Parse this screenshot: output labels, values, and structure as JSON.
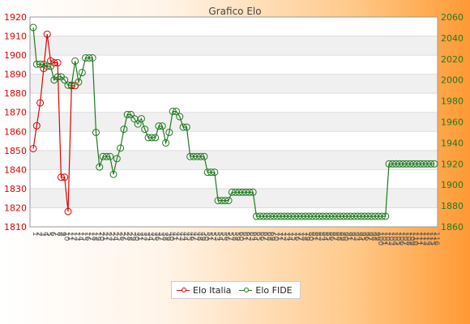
{
  "chart_data": {
    "type": "line",
    "title": "Grafico Elo",
    "legend_position": "bottom-center",
    "grid": true,
    "y_left": {
      "min": 1810,
      "max": 1920,
      "step": 10
    },
    "y_right": {
      "min": 1860,
      "max": 2060,
      "step": 20
    },
    "series": [
      {
        "name": "Elo Italia",
        "axis": "left",
        "color": "#e00000",
        "values": [
          1851,
          1863,
          1875,
          1893,
          1911,
          1897,
          1896,
          1896,
          1836,
          1836,
          1818,
          1884,
          1884
        ]
      },
      {
        "name": "Elo FIDE",
        "axis": "right",
        "color": "#1f7a1f",
        "values": [
          2050,
          2015,
          2015,
          2015,
          2013,
          2013,
          2000,
          2003,
          2003,
          2000,
          1995,
          1995,
          2018,
          1998,
          2007,
          2021,
          2021,
          2021,
          1950,
          1917,
          1927,
          1927,
          1927,
          1910,
          1925,
          1935,
          1953,
          1967,
          1967,
          1963,
          1958,
          1963,
          1953,
          1945,
          1945,
          1945,
          1956,
          1956,
          1940,
          1950,
          1970,
          1970,
          1965,
          1955,
          1955,
          1927,
          1927,
          1927,
          1927,
          1927,
          1912,
          1912,
          1912,
          1885,
          1885,
          1885,
          1885,
          1893,
          1893,
          1893,
          1893,
          1893,
          1893,
          1893,
          1870,
          1870,
          1870,
          1870,
          1870,
          1870,
          1870,
          1870,
          1870,
          1870,
          1870,
          1870,
          1870,
          1870,
          1870,
          1870,
          1870,
          1870,
          1870,
          1870,
          1870,
          1870,
          1870,
          1870,
          1870,
          1870,
          1870,
          1870,
          1870,
          1870,
          1870,
          1870,
          1870,
          1870,
          1870,
          1870,
          1870,
          1870,
          1920,
          1920,
          1920,
          1920,
          1920,
          1920,
          1920,
          1920,
          1920,
          1920,
          1920,
          1920,
          1920,
          1920
        ]
      }
    ]
  }
}
